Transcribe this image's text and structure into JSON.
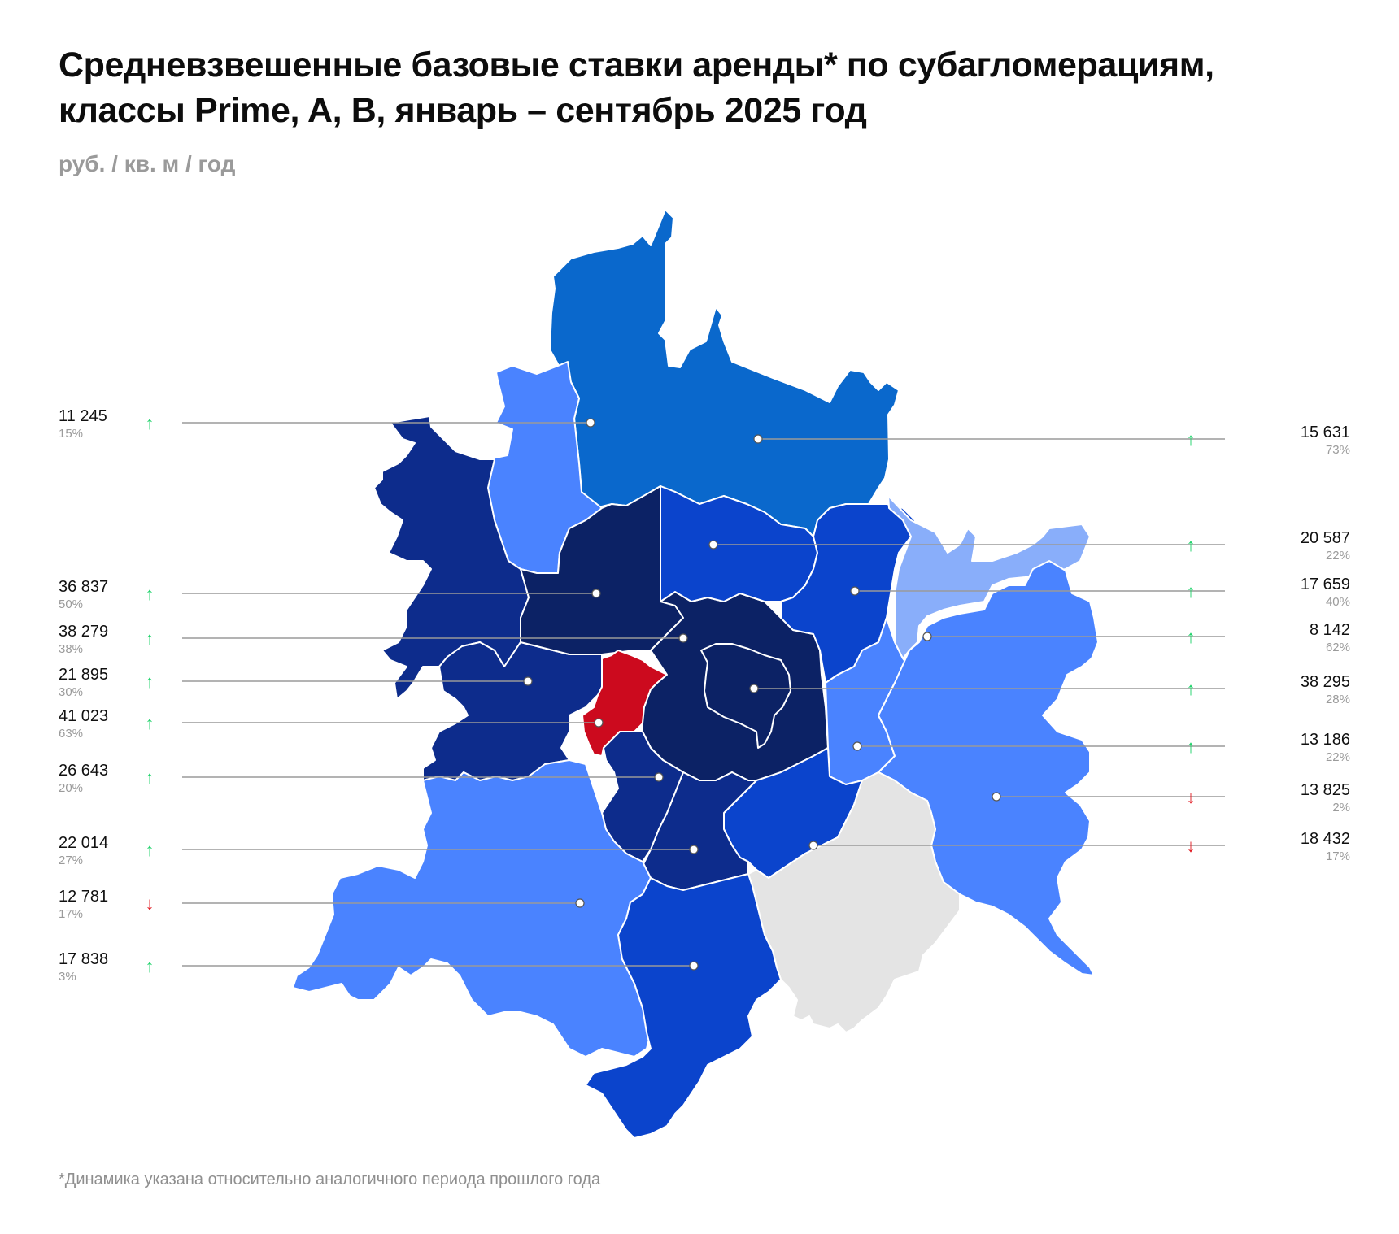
{
  "title": {
    "line1": "Средневзвешенные базовые ставки аренды* по субагломерациям,",
    "line2": "классы Prime, A, B, январь – сентябрь 2025 год"
  },
  "unit": "руб. / кв. м / год",
  "footnote": "*Динамика указана относительно аналогичного периода прошлого года",
  "colors": {
    "highlight": "#cc0a1e",
    "dark_navy": "#0c2265",
    "navy": "#0d2c8c",
    "royal_blue": "#0b44cc",
    "medium_blue": "#0a68cc",
    "light_blue": "#4a83ff",
    "pale_blue": "#89aefa",
    "no_data": "#e4e4e4",
    "arrow_up": "#1fd36a",
    "arrow_down": "#e11b22",
    "leader_line": "#9a9a9a"
  },
  "labels_left": [
    {
      "value": "11 245",
      "change": "15%",
      "trend": "up"
    },
    {
      "value": "36 837",
      "change": "50%",
      "trend": "up"
    },
    {
      "value": "38 279",
      "change": "38%",
      "trend": "up"
    },
    {
      "value": "21 895",
      "change": "30%",
      "trend": "up"
    },
    {
      "value": "41 023",
      "change": "63%",
      "trend": "up"
    },
    {
      "value": "26 643",
      "change": "20%",
      "trend": "up"
    },
    {
      "value": "22 014",
      "change": "27%",
      "trend": "up"
    },
    {
      "value": "12 781",
      "change": "17%",
      "trend": "down"
    },
    {
      "value": "17 838",
      "change": "3%",
      "trend": "up"
    }
  ],
  "labels_right": [
    {
      "value": "15 631",
      "change": "73%",
      "trend": "up"
    },
    {
      "value": "20 587",
      "change": "22%",
      "trend": "up"
    },
    {
      "value": "17 659",
      "change": "40%",
      "trend": "up"
    },
    {
      "value": "8 142",
      "change": "62%",
      "trend": "up"
    },
    {
      "value": "38 295",
      "change": "28%",
      "trend": "up"
    },
    {
      "value": "13 186",
      "change": "22%",
      "trend": "up"
    },
    {
      "value": "13 825",
      "change": "2%",
      "trend": "down"
    },
    {
      "value": "18 432",
      "change": "17%",
      "trend": "down"
    }
  ]
}
